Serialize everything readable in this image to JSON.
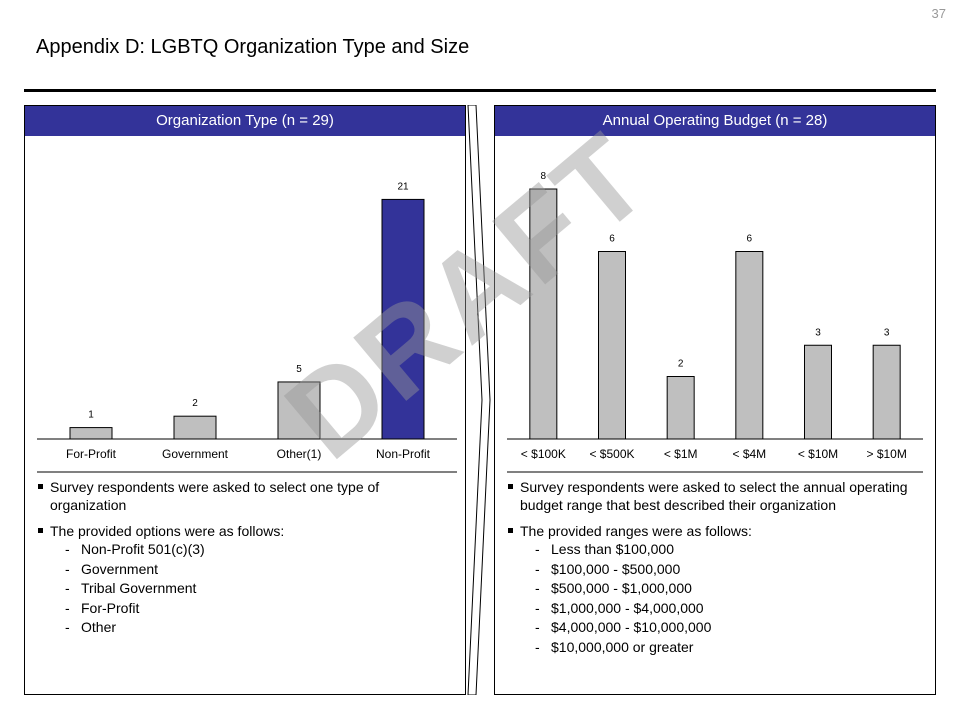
{
  "page_number": "37",
  "title": "Appendix D: LGBTQ Organization Type and Size",
  "watermark": "DRAFT",
  "colors": {
    "accent": "#333399",
    "bar_default": "#bfbfbf",
    "bar_highlight": "#333399"
  },
  "left_panel": {
    "header": "Organization Type (n = 29)",
    "notes": {
      "bullet1": "Survey respondents were asked to select one type of organization",
      "bullet2": "The provided options were as follows:",
      "options": [
        "Non-Profit 501(c)(3)",
        "Government",
        "Tribal Government",
        "For-Profit",
        "Other"
      ]
    }
  },
  "right_panel": {
    "header": "Annual Operating Budget (n = 28)",
    "notes": {
      "bullet1": "Survey respondents were asked to select the annual operating budget range that best described their organization",
      "bullet2": "The provided ranges were as follows:",
      "options": [
        "Less than $100,000",
        "$100,000 - $500,000",
        "$500,000 - $1,000,000",
        "$1,000,000 - $4,000,000",
        "$4,000,000 - $10,000,000",
        "$10,000,000 or greater"
      ]
    }
  },
  "chart_data": [
    {
      "type": "bar",
      "title": "Organization Type (n = 29)",
      "categories": [
        "For-Profit",
        "Government",
        "Other(1)",
        "Non-Profit"
      ],
      "values": [
        1,
        2,
        5,
        21
      ],
      "highlight_index": 3,
      "xlabel": "",
      "ylabel": "",
      "ylim": [
        0,
        22
      ],
      "grid": false
    },
    {
      "type": "bar",
      "title": "Annual Operating Budget (n = 28)",
      "categories": [
        "< $100K",
        "< $500K",
        "< $1M",
        "< $4M",
        "< $10M",
        "> $10M"
      ],
      "values": [
        8,
        6,
        2,
        6,
        3,
        3
      ],
      "xlabel": "",
      "ylabel": "",
      "ylim": [
        0,
        8.8
      ],
      "grid": false
    }
  ]
}
